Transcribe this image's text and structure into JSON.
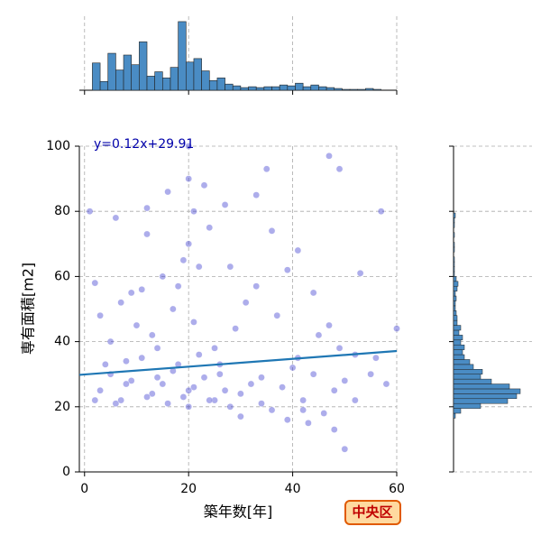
{
  "chart_data": {
    "type": "joint-scatter",
    "xlabel": "築年数[年]",
    "ylabel": "専有面積[m2]",
    "badge": "中央区",
    "xlim": [
      -1,
      60
    ],
    "ylim": [
      0,
      100
    ],
    "xticks": [
      0,
      20,
      40,
      60
    ],
    "yticks": [
      0,
      20,
      40,
      60,
      80,
      100
    ],
    "grid": true,
    "point_color": "#3333cc",
    "line_color": "#1f77b4",
    "hist_color": "#4a8cc4",
    "regression": {
      "slope": 0.12,
      "intercept": 29.91,
      "label": "y=0.12x+29.91"
    },
    "x": [
      3,
      5,
      7,
      9,
      11,
      13,
      15,
      17,
      19,
      21,
      23,
      25,
      27,
      4,
      6,
      8,
      10,
      12,
      14,
      16,
      18,
      20,
      22,
      24,
      26,
      28,
      30,
      32,
      34,
      36,
      38,
      40,
      42,
      44,
      46,
      48,
      50,
      52,
      3,
      7,
      11,
      15,
      19,
      20,
      20,
      20,
      21,
      24,
      28,
      33,
      35,
      39,
      41,
      44,
      47,
      49,
      53,
      57,
      60,
      2,
      5,
      9,
      13,
      17,
      21,
      25,
      29,
      33,
      37,
      41,
      45,
      49,
      55,
      58,
      1,
      6,
      12,
      18,
      23,
      27,
      31,
      36,
      42,
      47,
      52,
      56,
      2,
      8,
      14,
      20,
      26,
      30,
      34,
      39,
      43,
      48,
      50,
      16,
      22,
      12
    ],
    "y": [
      25,
      30,
      22,
      28,
      35,
      24,
      27,
      31,
      23,
      26,
      29,
      22,
      25,
      33,
      21,
      27,
      45,
      23,
      38,
      21,
      33,
      25,
      36,
      22,
      30,
      20,
      24,
      27,
      21,
      19,
      26,
      32,
      22,
      30,
      18,
      25,
      28,
      22,
      48,
      52,
      56,
      60,
      65,
      70,
      90,
      100,
      80,
      75,
      63,
      85,
      93,
      62,
      68,
      55,
      97,
      93,
      61,
      80,
      44,
      58,
      40,
      55,
      42,
      50,
      46,
      38,
      44,
      57,
      48,
      35,
      42,
      38,
      30,
      27,
      80,
      78,
      73,
      57,
      88,
      82,
      52,
      74,
      19,
      45,
      36,
      35,
      22,
      34,
      29,
      20,
      33,
      17,
      29,
      16,
      15,
      13,
      7,
      86,
      63,
      81
    ],
    "x_hist": {
      "bins": [
        1.5,
        3,
        4.5,
        6,
        7.5,
        9,
        10.5,
        12,
        13.5,
        15,
        16.5,
        18,
        19.5,
        21,
        22.5,
        24,
        25.5,
        27,
        28.5,
        30,
        31.5,
        33,
        34.5,
        36,
        37.5,
        39,
        40.5,
        42,
        43.5,
        45,
        46.5,
        48,
        49.5,
        51,
        52.5,
        54,
        55.5,
        57,
        58.5
      ],
      "counts": [
        31,
        10,
        42,
        23,
        40,
        29,
        55,
        16,
        21,
        14,
        26,
        78,
        32,
        36,
        22,
        11,
        14,
        7,
        5,
        3,
        4,
        3,
        4,
        4,
        6,
        5,
        8,
        4,
        6,
        4,
        3,
        2,
        1,
        1,
        1,
        2,
        1,
        0
      ]
    },
    "y_hist": {
      "bins": [
        16.5,
        18,
        19.5,
        21,
        22.5,
        24,
        25.5,
        27,
        28.5,
        30,
        31.5,
        33,
        34.5,
        36,
        37.5,
        39,
        40.5,
        42,
        43.5,
        45,
        46.5,
        48,
        49.5,
        51,
        52.5,
        54,
        55.5,
        57,
        58.5,
        60,
        61.5,
        63,
        64.5,
        66,
        67.5,
        69,
        70.5,
        72,
        73.5,
        75,
        76.5,
        78,
        79.5
      ],
      "counts": [
        2,
        8,
        30,
        60,
        70,
        74,
        62,
        42,
        30,
        32,
        22,
        18,
        12,
        10,
        12,
        8,
        10,
        6,
        8,
        4,
        4,
        3,
        2,
        2,
        3,
        2,
        4,
        5,
        3,
        1,
        1,
        1,
        1,
        0,
        1,
        1,
        0,
        1,
        0,
        1,
        1,
        2
      ]
    }
  }
}
